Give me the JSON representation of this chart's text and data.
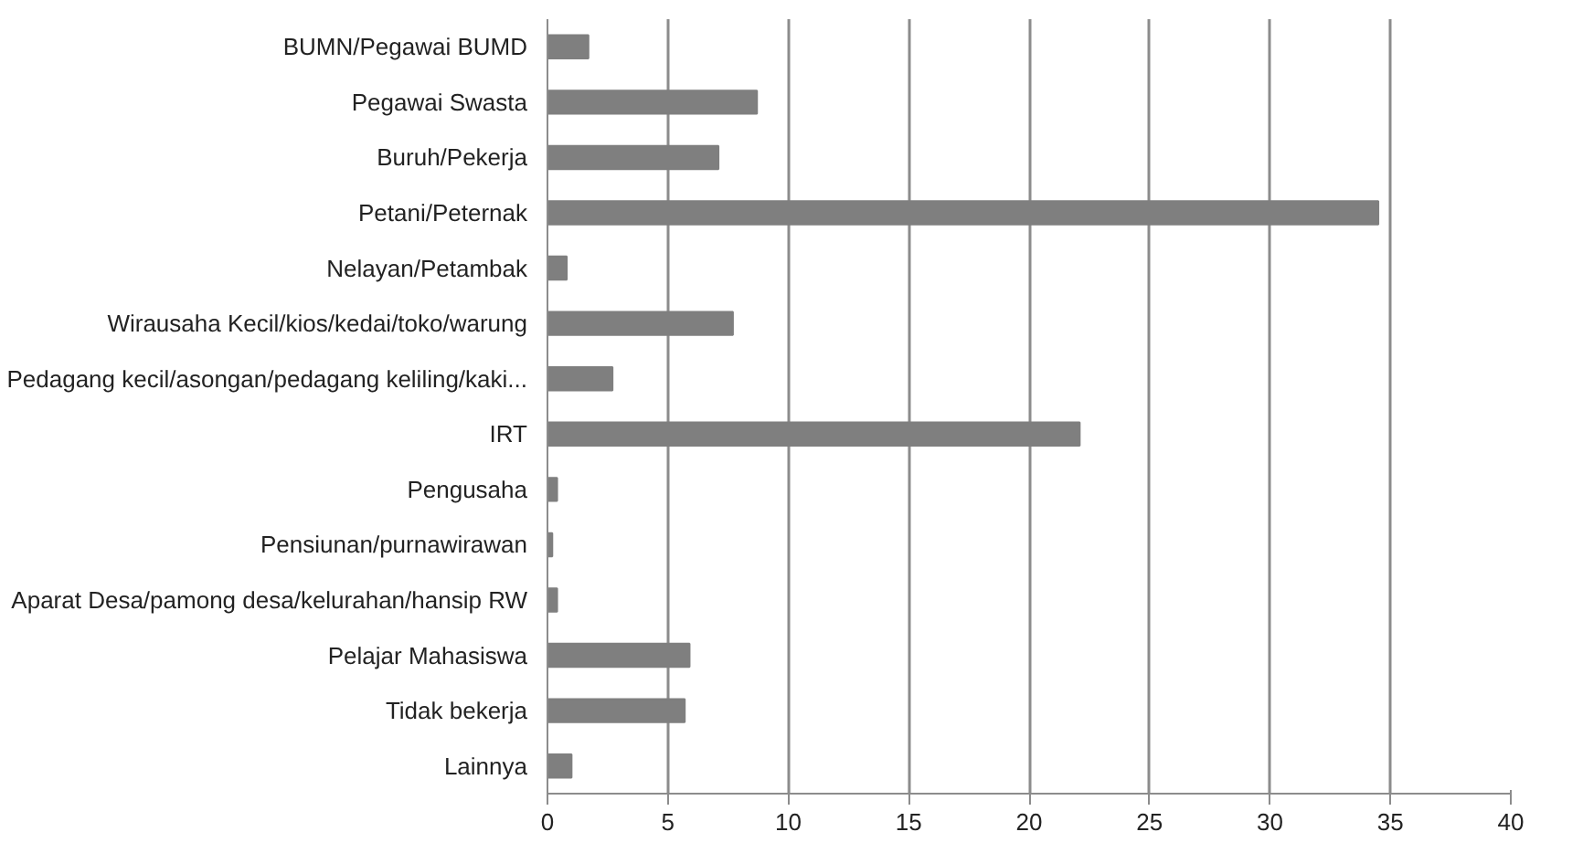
{
  "chart_data": {
    "type": "bar",
    "orientation": "horizontal",
    "categories": [
      "BUMN/Pegawai BUMD",
      "Pegawai Swasta",
      "Buruh/Pekerja",
      "Petani/Peternak",
      "Nelayan/Petambak",
      "Wirausaha Kecil/kios/kedai/toko/warung",
      "Pedagang kecil/asongan/pedagang keliling/kaki...",
      "IRT",
      "Pengusaha",
      "Pensiunan/purnawirawan",
      "Aparat Desa/pamong desa/kelurahan/hansip RW",
      "Pelajar Mahasiswa",
      "Tidak bekerja",
      "Lainnya"
    ],
    "values": [
      1.7,
      8.7,
      7.1,
      34.5,
      0.8,
      7.7,
      2.7,
      22.1,
      0.4,
      0.2,
      0.4,
      5.9,
      5.7,
      1.0
    ],
    "color": "#7f7f7f",
    "xlim": [
      0,
      40
    ],
    "xticks": [
      0,
      5,
      10,
      15,
      20,
      25,
      30,
      35,
      40
    ],
    "grid": "x"
  }
}
